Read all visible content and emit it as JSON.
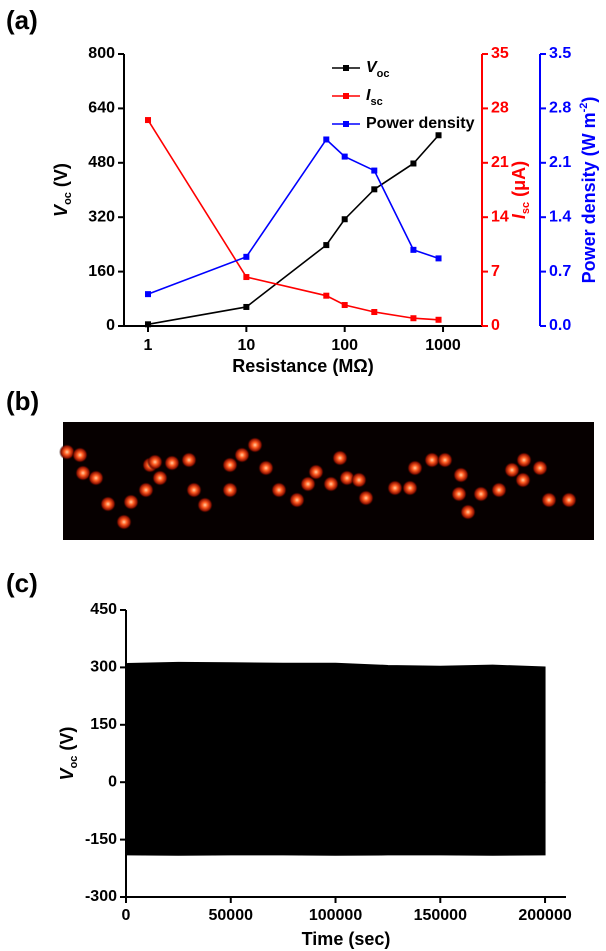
{
  "chart_data": [
    {
      "type": "line",
      "panel_label": "(a)",
      "log_x": true,
      "xlabel": "Resistance (MΩ)",
      "x": [
        1,
        10,
        65,
        100,
        200,
        500,
        900
      ],
      "xlim": [
        0.57,
        2490
      ],
      "xticks": [
        1,
        10,
        100,
        1000
      ],
      "ylabel": [
        "V",
        "oc",
        " (V)"
      ],
      "ylim": [
        0,
        800
      ],
      "yticks": [
        0,
        160,
        320,
        480,
        640,
        800
      ],
      "y2label": [
        "I",
        "sc",
        " (μA)"
      ],
      "y2lim": [
        0,
        35
      ],
      "y2ticks": [
        0,
        7,
        14,
        21,
        28,
        35
      ],
      "y3label": [
        "Power density (W m",
        "-2",
        ")"
      ],
      "y3lim": [
        0,
        3.5
      ],
      "y3ticks": [
        {
          "value": 0,
          "label": "0.0"
        },
        0.7,
        1.4,
        2.1,
        2.8,
        3.5
      ],
      "legend_position": "upper right",
      "series": [
        {
          "name": [
            "V",
            "oc"
          ],
          "color": "#000000",
          "values": [
            5,
            56,
            238,
            314,
            402,
            478,
            561
          ]
        },
        {
          "name": [
            "I",
            "sc"
          ],
          "color": "#ff0000",
          "axis": "y2",
          "values": [
            26.5,
            6.3,
            3.9,
            2.7,
            1.8,
            1.0,
            0.8
          ]
        },
        {
          "name": [
            "Power density"
          ],
          "color": "#0000ff",
          "axis": "y3",
          "values": [
            0.41,
            0.89,
            2.4,
            2.18,
            2.0,
            0.98,
            0.87
          ]
        }
      ]
    },
    {
      "type": "band",
      "panel_label": "(c)",
      "xlabel": "Time (sec)",
      "ylabel": [
        "V",
        "oc",
        " (V)"
      ],
      "x": [
        0,
        25000,
        50000,
        75000,
        100000,
        125000,
        150000,
        175000,
        200000
      ],
      "xlim": [
        0,
        210000
      ],
      "xticks": [
        0,
        50000,
        100000,
        150000,
        200000
      ],
      "ylim": [
        -300,
        450
      ],
      "yticks": [
        -300,
        -150,
        0,
        150,
        300,
        450
      ],
      "series": [
        {
          "color": "#000000",
          "values": [
            310,
            313,
            312,
            311,
            311,
            305,
            303,
            306,
            301
          ]
        },
        {
          "color": "#000000",
          "values": [
            -190,
            -191,
            -190,
            -190,
            -191,
            -190,
            -190,
            -191,
            -190
          ]
        }
      ]
    }
  ],
  "image": {
    "label": "(b)"
  }
}
